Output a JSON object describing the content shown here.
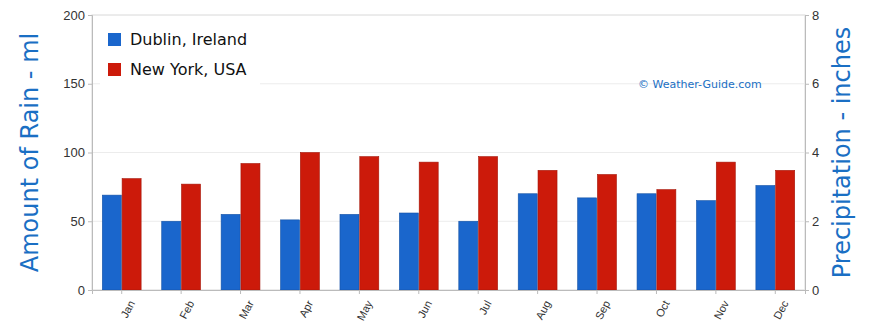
{
  "chart_data": {
    "type": "bar",
    "categories": [
      "Jan",
      "Feb",
      "Mar",
      "Apr",
      "May",
      "Jun",
      "Jul",
      "Aug",
      "Sep",
      "Oct",
      "Nov",
      "Dec"
    ],
    "series": [
      {
        "name": "Dublin, Ireland",
        "color": "#1a66cc",
        "values": [
          69,
          50,
          55,
          51,
          55,
          56,
          50,
          70,
          67,
          70,
          65,
          76
        ]
      },
      {
        "name": "New York, USA",
        "color": "#cc1a0a",
        "values": [
          81,
          77,
          92,
          100,
          97,
          93,
          97,
          87,
          84,
          73,
          93,
          87
        ]
      }
    ],
    "y_label": "Amount of Rain - ml",
    "y2_label": "Precipitation - inches",
    "ylim": [
      0,
      200
    ],
    "yticks": [
      0,
      50,
      100,
      150,
      200
    ],
    "y2lim": [
      0,
      8
    ],
    "y2ticks": [
      0,
      2,
      4,
      6,
      8
    ],
    "annotation": "© Weather-Guide.com",
    "legend": "top-left",
    "grid": true
  }
}
